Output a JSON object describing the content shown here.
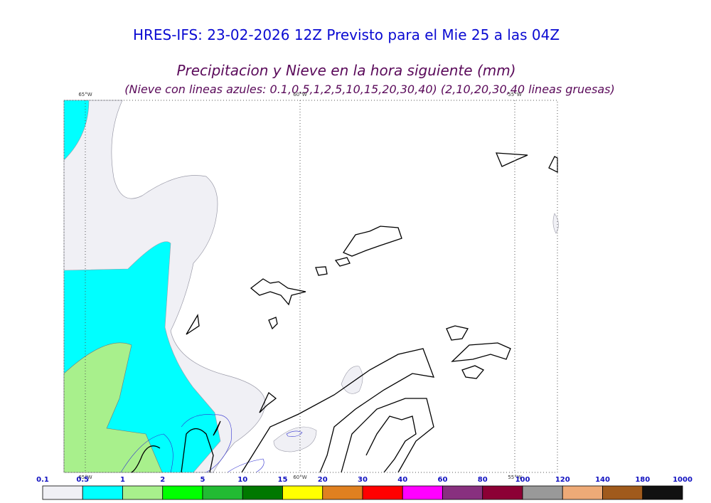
{
  "header": {
    "title": "HRES-IFS: 23-02-2026 12Z Previsto para el Mie 25 a las 04Z",
    "subtitle": "Precipitacion y Nieve en la hora siguiente (mm)",
    "note": "(Nieve con lineas azules: 0.1,0.5,1,2,5,10,15,20,30,40)  (2,10,20,30,40 lineas gruesas)"
  },
  "map": {
    "meridians": [
      "65°W",
      "60°W",
      "55°W"
    ]
  },
  "colorbar": {
    "labels": [
      0.1,
      0.5,
      1,
      2,
      5,
      10,
      15,
      20,
      30,
      40,
      60,
      80,
      100,
      120,
      140,
      180,
      1000
    ],
    "colors": [
      "#f0f0f5",
      "#00ffff",
      "#a8f08c",
      "#00ff00",
      "#22bb33",
      "#007800",
      "#ffff00",
      "#e08020",
      "#ff0000",
      "#ff00ff",
      "#88307f",
      "#8c0035",
      "#999999",
      "#eeaa77",
      "#a05a1c",
      "#111111"
    ]
  }
}
